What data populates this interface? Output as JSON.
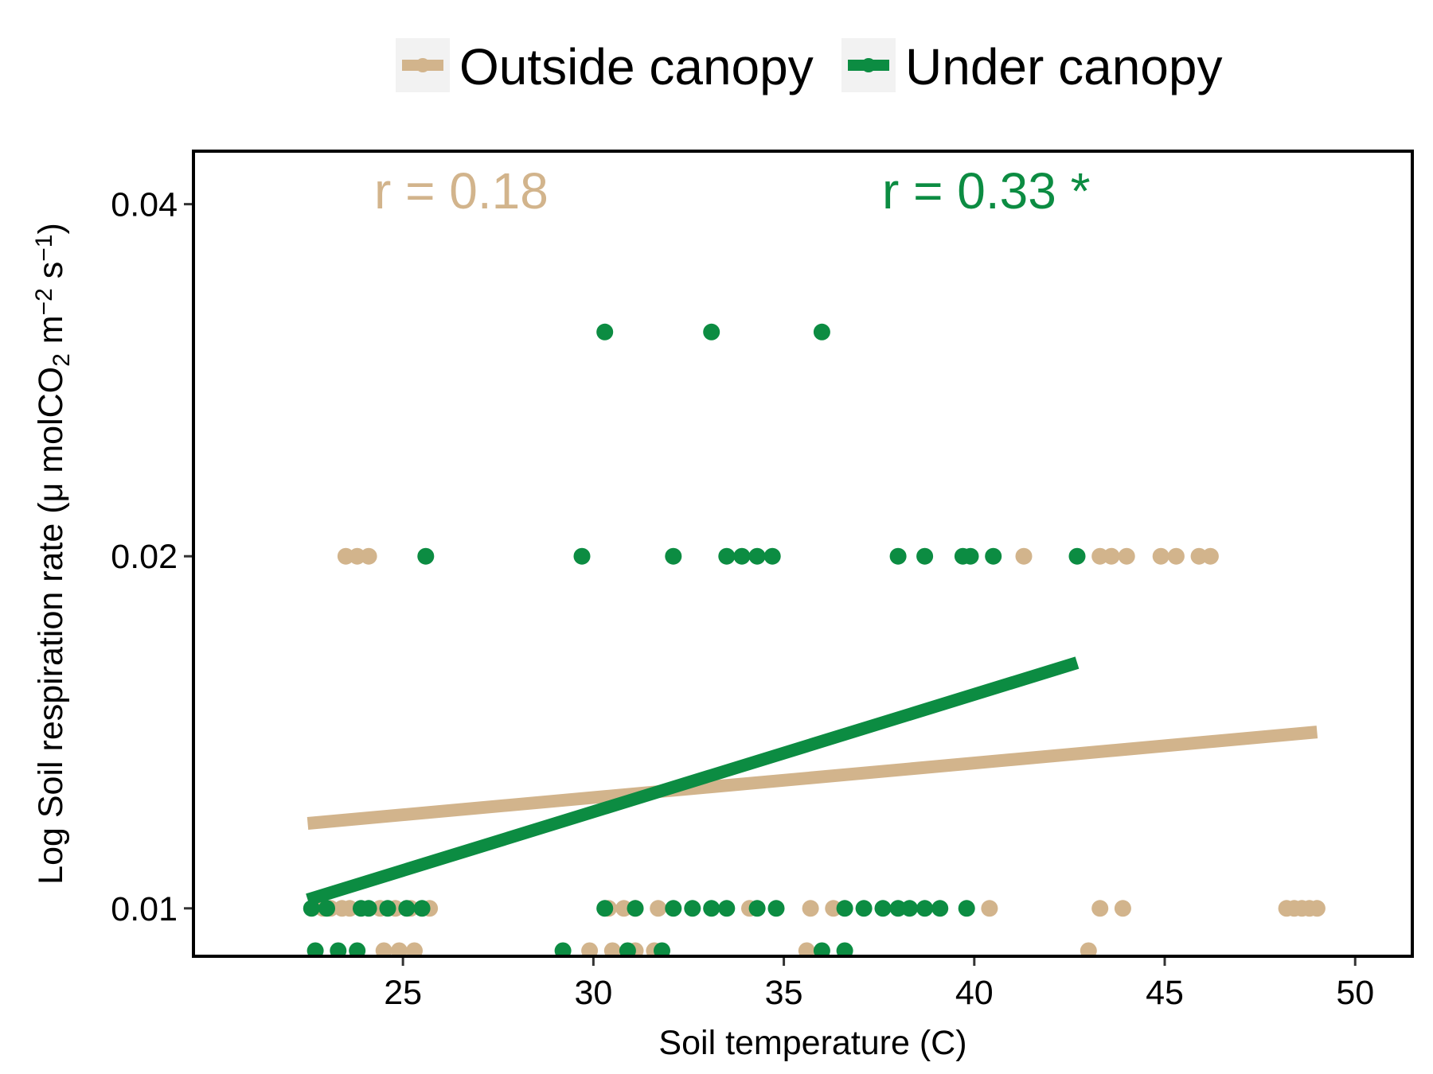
{
  "chart_data": {
    "type": "scatter",
    "xlabel": "Soil temperature (C)",
    "ylabel": {
      "main": "Log Soil respiration rate  (",
      "mu": "μ",
      "unit_a": " molCO",
      "sub2": "2",
      "unit_b": " m",
      "sup_m2": "−2",
      "unit_c": " s",
      "sup_m1": "−1",
      "close": ")"
    },
    "x_range": [
      19.5,
      51.5
    ],
    "y_range_log": [
      0.0091,
      0.0444
    ],
    "y_scale": "log",
    "x_ticks": [
      25,
      30,
      35,
      40,
      45,
      50
    ],
    "x_tick_labels": [
      "25",
      "30",
      "35",
      "40",
      "45",
      "50"
    ],
    "y_ticks": [
      0.01,
      0.02,
      0.04
    ],
    "y_tick_labels": [
      "0.01",
      "0.02",
      "0.04"
    ],
    "grid": false,
    "legend_position": "top",
    "series": [
      {
        "name": "Outside canopy",
        "color": "#D2B48C",
        "r_label": "r = 0.18",
        "points": [
          [
            22.9,
            0.01
          ],
          [
            23.1,
            0.01
          ],
          [
            23.4,
            0.01
          ],
          [
            23.6,
            0.01
          ],
          [
            24.4,
            0.01
          ],
          [
            24.8,
            0.01
          ],
          [
            25.2,
            0.01
          ],
          [
            25.7,
            0.01
          ],
          [
            30.4,
            0.01
          ],
          [
            30.8,
            0.01
          ],
          [
            31.1,
            0.01
          ],
          [
            31.7,
            0.01
          ],
          [
            34.1,
            0.01
          ],
          [
            35.7,
            0.01
          ],
          [
            36.3,
            0.01
          ],
          [
            40.4,
            0.01
          ],
          [
            43.3,
            0.01
          ],
          [
            43.9,
            0.01
          ],
          [
            48.2,
            0.01
          ],
          [
            48.4,
            0.01
          ],
          [
            48.6,
            0.01
          ],
          [
            48.8,
            0.01
          ],
          [
            49.0,
            0.01
          ],
          [
            23.5,
            0.02
          ],
          [
            23.8,
            0.02
          ],
          [
            24.1,
            0.02
          ],
          [
            41.3,
            0.02
          ],
          [
            43.3,
            0.02
          ],
          [
            43.6,
            0.02
          ],
          [
            44.0,
            0.02
          ],
          [
            44.9,
            0.02
          ],
          [
            45.3,
            0.02
          ],
          [
            45.9,
            0.02
          ],
          [
            46.2,
            0.02
          ],
          [
            24.5,
            0.0092
          ],
          [
            24.9,
            0.0092
          ],
          [
            25.3,
            0.0092
          ],
          [
            29.9,
            0.0092
          ],
          [
            30.5,
            0.0092
          ],
          [
            31.1,
            0.0092
          ],
          [
            31.6,
            0.0092
          ],
          [
            35.6,
            0.0092
          ],
          [
            43.0,
            0.0092
          ]
        ],
        "fit": [
          [
            22.5,
            0.01182
          ],
          [
            49.0,
            0.01415
          ]
        ]
      },
      {
        "name": "Under canopy",
        "color": "#0C8C42",
        "r_label": "r = 0.33 *",
        "points": [
          [
            22.6,
            0.01
          ],
          [
            23.0,
            0.01
          ],
          [
            23.9,
            0.01
          ],
          [
            24.1,
            0.01
          ],
          [
            24.6,
            0.01
          ],
          [
            25.1,
            0.01
          ],
          [
            25.5,
            0.01
          ],
          [
            30.3,
            0.01
          ],
          [
            31.1,
            0.01
          ],
          [
            32.1,
            0.01
          ],
          [
            32.6,
            0.01
          ],
          [
            33.1,
            0.01
          ],
          [
            33.5,
            0.01
          ],
          [
            34.3,
            0.01
          ],
          [
            34.8,
            0.01
          ],
          [
            36.6,
            0.01
          ],
          [
            37.1,
            0.01
          ],
          [
            37.6,
            0.01
          ],
          [
            38.0,
            0.01
          ],
          [
            38.3,
            0.01
          ],
          [
            38.7,
            0.01
          ],
          [
            39.1,
            0.01
          ],
          [
            39.8,
            0.01
          ],
          [
            25.6,
            0.02
          ],
          [
            29.7,
            0.02
          ],
          [
            32.1,
            0.02
          ],
          [
            33.5,
            0.02
          ],
          [
            33.9,
            0.02
          ],
          [
            34.3,
            0.02
          ],
          [
            34.7,
            0.02
          ],
          [
            38.0,
            0.02
          ],
          [
            38.7,
            0.02
          ],
          [
            39.7,
            0.02
          ],
          [
            39.9,
            0.02
          ],
          [
            40.5,
            0.02
          ],
          [
            42.7,
            0.02
          ],
          [
            30.3,
            0.0311
          ],
          [
            33.1,
            0.0311
          ],
          [
            36.0,
            0.0311
          ],
          [
            22.7,
            0.0092
          ],
          [
            23.3,
            0.0092
          ],
          [
            23.8,
            0.0092
          ],
          [
            29.2,
            0.0092
          ],
          [
            30.9,
            0.0092
          ],
          [
            31.8,
            0.0092
          ],
          [
            36.0,
            0.0092
          ],
          [
            36.6,
            0.0092
          ]
        ],
        "fit": [
          [
            22.5,
            0.01017
          ],
          [
            42.7,
            0.01622
          ]
        ]
      }
    ]
  }
}
